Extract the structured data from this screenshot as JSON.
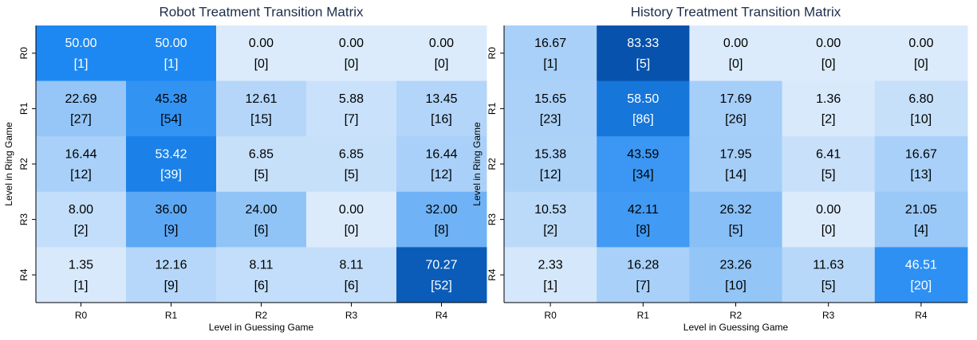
{
  "chart_data": [
    {
      "type": "heatmap",
      "title": "Robot Treatment Transition Matrix",
      "xlabel": "Level in Guessing Game",
      "ylabel": "Level in Ring Game",
      "categories": [
        "R0",
        "R1",
        "R2",
        "R3",
        "R4"
      ],
      "rows": [
        "R0",
        "R1",
        "R2",
        "R3",
        "R4"
      ],
      "colors": [
        "#dcebfc",
        "#8ec2f6",
        "#1e88f2",
        "#0652ac"
      ],
      "values": [
        [
          50,
          50,
          0,
          0,
          0
        ],
        [
          22.69,
          45.38,
          12.61,
          5.88,
          13.45
        ],
        [
          16.44,
          53.42,
          6.85,
          6.85,
          16.44
        ],
        [
          8,
          36,
          24,
          0,
          32
        ],
        [
          1.35,
          12.16,
          8.11,
          8.11,
          70.27
        ]
      ],
      "value_labels": [
        [
          "50.00",
          "50.00",
          "0.00",
          "0.00",
          "0.00"
        ],
        [
          "22.69",
          "45.38",
          "12.61",
          "5.88",
          "13.45"
        ],
        [
          "16.44",
          "53.42",
          "6.85",
          "6.85",
          "16.44"
        ],
        [
          "8.00",
          "36.00",
          "24.00",
          "0.00",
          "32.00"
        ],
        [
          "1.35",
          "12.16",
          "8.11",
          "8.11",
          "70.27"
        ]
      ],
      "counts": [
        [
          1,
          1,
          0,
          0,
          0
        ],
        [
          27,
          54,
          15,
          7,
          16
        ],
        [
          12,
          39,
          5,
          5,
          12
        ],
        [
          2,
          9,
          6,
          0,
          8
        ],
        [
          1,
          9,
          6,
          6,
          52
        ]
      ],
      "count_labels": [
        [
          "[1]",
          "[1]",
          "[0]",
          "[0]",
          "[0]"
        ],
        [
          "[27]",
          "[54]",
          "[15]",
          "[7]",
          "[16]"
        ],
        [
          "[12]",
          "[39]",
          "[5]",
          "[5]",
          "[12]"
        ],
        [
          "[2]",
          "[9]",
          "[6]",
          "[0]",
          "[8]"
        ],
        [
          "[1]",
          "[9]",
          "[6]",
          "[6]",
          "[52]"
        ]
      ]
    },
    {
      "type": "heatmap",
      "title": "History Treatment Transition Matrix",
      "xlabel": "Level in Guessing Game",
      "ylabel": "Level in Ring Game",
      "categories": [
        "R0",
        "R1",
        "R2",
        "R3",
        "R4"
      ],
      "rows": [
        "R0",
        "R1",
        "R2",
        "R3",
        "R4"
      ],
      "colors": [
        "#dcebfc",
        "#8ec2f6",
        "#1e88f2",
        "#0652ac"
      ],
      "values": [
        [
          16.67,
          83.33,
          0,
          0,
          0
        ],
        [
          15.65,
          58.5,
          17.69,
          1.36,
          6.8
        ],
        [
          15.38,
          43.59,
          17.95,
          6.41,
          16.67
        ],
        [
          10.53,
          42.11,
          26.32,
          0,
          21.05
        ],
        [
          2.33,
          16.28,
          23.26,
          11.63,
          46.51
        ]
      ],
      "value_labels": [
        [
          "16.67",
          "83.33",
          "0.00",
          "0.00",
          "0.00"
        ],
        [
          "15.65",
          "58.50",
          "17.69",
          "1.36",
          "6.80"
        ],
        [
          "15.38",
          "43.59",
          "17.95",
          "6.41",
          "16.67"
        ],
        [
          "10.53",
          "42.11",
          "26.32",
          "0.00",
          "21.05"
        ],
        [
          "2.33",
          "16.28",
          "23.26",
          "11.63",
          "46.51"
        ]
      ],
      "counts": [
        [
          1,
          5,
          0,
          0,
          0
        ],
        [
          23,
          86,
          26,
          2,
          10
        ],
        [
          12,
          34,
          14,
          5,
          13
        ],
        [
          2,
          8,
          5,
          0,
          4
        ],
        [
          1,
          7,
          10,
          5,
          20
        ]
      ],
      "count_labels": [
        [
          "[1]",
          "[5]",
          "[0]",
          "[0]",
          "[0]"
        ],
        [
          "[23]",
          "[86]",
          "[26]",
          "[2]",
          "[10]"
        ],
        [
          "[12]",
          "[34]",
          "[14]",
          "[5]",
          "[13]"
        ],
        [
          "[2]",
          "[8]",
          "[5]",
          "[0]",
          "[4]"
        ],
        [
          "[1]",
          "[7]",
          "[10]",
          "[5]",
          "[20]"
        ]
      ]
    }
  ]
}
